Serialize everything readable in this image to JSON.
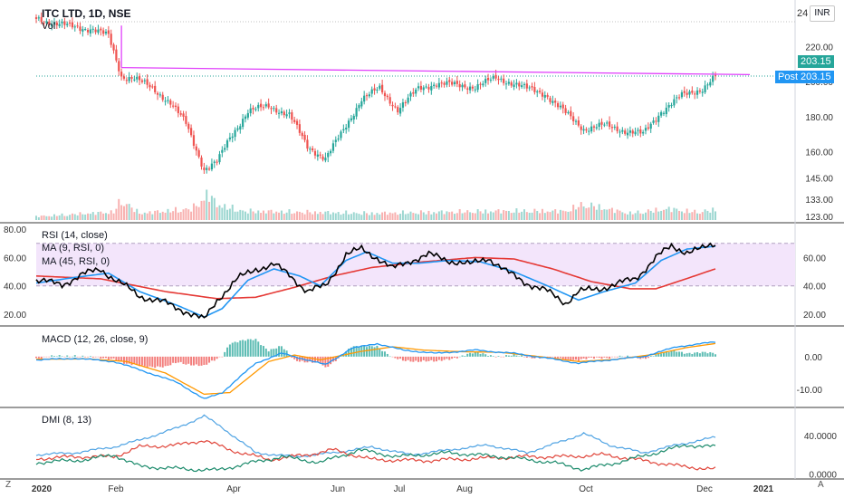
{
  "header": {
    "title": "ITC LTD, 1D, NSE",
    "vol_label": "Vol",
    "currency": "INR",
    "price_partial": "24"
  },
  "badges": {
    "last_price": "203.15",
    "post_label": "Post",
    "post_price": "203.15"
  },
  "corner": {
    "left": "Z",
    "right": "A"
  },
  "colors": {
    "up": "#26a69a",
    "down": "#ef5350",
    "rsi": "#000000",
    "ma9": "#2196f3",
    "ma45": "#e53935",
    "macd": "#2196f3",
    "signal": "#ff9800",
    "dmi_adx": "#4fa3e3",
    "dmi_pos": "#1b8a6b",
    "dmi_neg": "#e0453a",
    "resistance": "#e040fb",
    "rsi_band": "#f3e5fb"
  },
  "chart_data": [
    {
      "type": "candlestick",
      "title": "ITC LTD, 1D, NSE",
      "ylim": [
        121,
        244
      ],
      "yticks": [
        "220.00",
        "200.00",
        "180.00",
        "160.00",
        "145.00",
        "133.00",
        "123.00"
      ],
      "ytick_values": [
        220,
        200,
        180,
        160,
        145,
        133,
        123
      ],
      "x_ticks": [
        "2020",
        "Feb",
        "Apr",
        "Jun",
        "Jul",
        "Aug",
        "Oct",
        "Dec",
        "2021"
      ],
      "resistance_line": [
        208,
        204
      ],
      "last_price": 203.15,
      "close_anchors": [
        [
          0,
          236
        ],
        [
          8,
          233
        ],
        [
          15,
          231
        ],
        [
          22,
          230
        ],
        [
          28,
          226
        ],
        [
          33,
          203
        ],
        [
          38,
          202
        ],
        [
          45,
          196
        ],
        [
          52,
          188
        ],
        [
          58,
          176
        ],
        [
          65,
          150
        ],
        [
          70,
          154
        ],
        [
          75,
          168
        ],
        [
          82,
          183
        ],
        [
          90,
          186
        ],
        [
          98,
          181
        ],
        [
          105,
          163
        ],
        [
          112,
          156
        ],
        [
          118,
          170
        ],
        [
          126,
          190
        ],
        [
          133,
          196
        ],
        [
          140,
          184
        ],
        [
          148,
          196
        ],
        [
          155,
          199
        ],
        [
          163,
          198
        ],
        [
          170,
          197
        ],
        [
          178,
          202
        ],
        [
          185,
          199
        ],
        [
          190,
          196
        ],
        [
          197,
          193
        ],
        [
          205,
          182
        ],
        [
          212,
          173
        ],
        [
          220,
          175
        ],
        [
          228,
          172
        ],
        [
          235,
          170
        ],
        [
          242,
          183
        ],
        [
          250,
          192
        ],
        [
          258,
          196
        ],
        [
          263,
          203
        ]
      ],
      "n_days": 264,
      "volume_range": [
        0,
        100
      ],
      "volume_anchors": [
        [
          0,
          8
        ],
        [
          30,
          18
        ],
        [
          33,
          45
        ],
        [
          40,
          15
        ],
        [
          60,
          25
        ],
        [
          64,
          40
        ],
        [
          66,
          60
        ],
        [
          70,
          35
        ],
        [
          80,
          20
        ],
        [
          100,
          18
        ],
        [
          130,
          15
        ],
        [
          180,
          20
        ],
        [
          205,
          20
        ],
        [
          212,
          35
        ],
        [
          230,
          15
        ],
        [
          245,
          25
        ],
        [
          255,
          18
        ],
        [
          263,
          22
        ]
      ]
    },
    {
      "type": "line",
      "title": "RSI (14, close)",
      "series_labels": [
        "RSI (14, close)",
        "MA (9, RSI, 0)",
        "MA (45, RSI, 0)"
      ],
      "ylim": [
        13,
        82
      ],
      "band": [
        40,
        70
      ],
      "left_ticks": [
        "80.00",
        "60.00",
        "40.00",
        "20.00"
      ],
      "left_tick_values": [
        80,
        60,
        40,
        20
      ],
      "right_ticks": [
        "60.00",
        "40.00",
        "20.00"
      ],
      "right_tick_values": [
        60,
        40,
        20
      ],
      "rsi_anchors": [
        [
          0,
          44
        ],
        [
          10,
          41
        ],
        [
          18,
          48
        ],
        [
          25,
          52
        ],
        [
          30,
          45
        ],
        [
          40,
          33
        ],
        [
          50,
          28
        ],
        [
          58,
          22
        ],
        [
          65,
          16
        ],
        [
          70,
          30
        ],
        [
          78,
          45
        ],
        [
          85,
          52
        ],
        [
          92,
          55
        ],
        [
          98,
          48
        ],
        [
          105,
          36
        ],
        [
          112,
          40
        ],
        [
          120,
          62
        ],
        [
          126,
          66
        ],
        [
          132,
          60
        ],
        [
          138,
          52
        ],
        [
          145,
          58
        ],
        [
          152,
          62
        ],
        [
          160,
          58
        ],
        [
          168,
          55
        ],
        [
          175,
          60
        ],
        [
          182,
          50
        ],
        [
          190,
          42
        ],
        [
          198,
          36
        ],
        [
          205,
          28
        ],
        [
          210,
          36
        ],
        [
          218,
          38
        ],
        [
          226,
          42
        ],
        [
          232,
          45
        ],
        [
          240,
          60
        ],
        [
          246,
          68
        ],
        [
          252,
          64
        ],
        [
          258,
          66
        ],
        [
          263,
          70
        ]
      ],
      "ma9_anchors": [
        [
          0,
          42
        ],
        [
          15,
          46
        ],
        [
          28,
          49
        ],
        [
          40,
          36
        ],
        [
          55,
          26
        ],
        [
          65,
          18
        ],
        [
          72,
          24
        ],
        [
          82,
          44
        ],
        [
          92,
          52
        ],
        [
          102,
          47
        ],
        [
          110,
          40
        ],
        [
          120,
          58
        ],
        [
          128,
          64
        ],
        [
          138,
          56
        ],
        [
          148,
          56
        ],
        [
          160,
          58
        ],
        [
          172,
          57
        ],
        [
          185,
          50
        ],
        [
          198,
          40
        ],
        [
          210,
          30
        ],
        [
          220,
          36
        ],
        [
          232,
          42
        ],
        [
          242,
          58
        ],
        [
          252,
          66
        ],
        [
          263,
          68
        ]
      ],
      "ma45_anchors": [
        [
          0,
          47
        ],
        [
          25,
          45
        ],
        [
          50,
          36
        ],
        [
          70,
          31
        ],
        [
          85,
          32
        ],
        [
          100,
          39
        ],
        [
          115,
          47
        ],
        [
          130,
          53
        ],
        [
          150,
          57
        ],
        [
          170,
          60
        ],
        [
          185,
          59
        ],
        [
          200,
          52
        ],
        [
          215,
          43
        ],
        [
          230,
          38
        ],
        [
          240,
          38
        ],
        [
          250,
          44
        ],
        [
          263,
          52
        ]
      ]
    },
    {
      "type": "line",
      "title": "MACD (12, 26, close, 9)",
      "ylim": [
        -15,
        8
      ],
      "right_ticks": [
        "0.00",
        "-10.00"
      ],
      "right_tick_values": [
        0,
        -10
      ],
      "macd_anchors": [
        [
          0,
          -1
        ],
        [
          15,
          -0.5
        ],
        [
          30,
          -1.5
        ],
        [
          40,
          -4
        ],
        [
          55,
          -8
        ],
        [
          65,
          -13
        ],
        [
          72,
          -11
        ],
        [
          85,
          -2
        ],
        [
          95,
          1
        ],
        [
          105,
          -1
        ],
        [
          112,
          -2.5
        ],
        [
          122,
          2.5
        ],
        [
          132,
          4
        ],
        [
          142,
          2
        ],
        [
          155,
          1
        ],
        [
          170,
          2
        ],
        [
          185,
          1
        ],
        [
          198,
          -0.5
        ],
        [
          210,
          -2
        ],
        [
          222,
          -1
        ],
        [
          235,
          0
        ],
        [
          248,
          3
        ],
        [
          263,
          4.5
        ]
      ],
      "signal_anchors": [
        [
          0,
          -0.8
        ],
        [
          20,
          -0.7
        ],
        [
          35,
          -1.5
        ],
        [
          50,
          -5
        ],
        [
          65,
          -11.5
        ],
        [
          75,
          -11
        ],
        [
          90,
          -1.5
        ],
        [
          100,
          0.5
        ],
        [
          110,
          -1
        ],
        [
          125,
          1.5
        ],
        [
          138,
          3
        ],
        [
          150,
          2
        ],
        [
          165,
          1.5
        ],
        [
          180,
          1.3
        ],
        [
          195,
          0
        ],
        [
          210,
          -1.5
        ],
        [
          225,
          -0.8
        ],
        [
          240,
          0.8
        ],
        [
          252,
          2.8
        ],
        [
          263,
          4
        ]
      ],
      "hist_range": [
        -3,
        3
      ]
    },
    {
      "type": "line",
      "title": "DMI (8, 13)",
      "ylim": [
        -4,
        64
      ],
      "right_ticks": [
        "40.0000",
        "0.0000"
      ],
      "right_tick_values": [
        40,
        0
      ],
      "adx_anchors": [
        [
          0,
          20
        ],
        [
          15,
          22
        ],
        [
          30,
          28
        ],
        [
          40,
          35
        ],
        [
          55,
          48
        ],
        [
          65,
          60
        ],
        [
          72,
          48
        ],
        [
          85,
          22
        ],
        [
          100,
          18
        ],
        [
          115,
          22
        ],
        [
          130,
          28
        ],
        [
          145,
          20
        ],
        [
          160,
          25
        ],
        [
          175,
          30
        ],
        [
          190,
          22
        ],
        [
          205,
          35
        ],
        [
          212,
          42
        ],
        [
          222,
          30
        ],
        [
          235,
          22
        ],
        [
          248,
          30
        ],
        [
          263,
          38
        ]
      ],
      "pos_anchors": [
        [
          0,
          12
        ],
        [
          20,
          15
        ],
        [
          30,
          20
        ],
        [
          40,
          8
        ],
        [
          60,
          5
        ],
        [
          70,
          4
        ],
        [
          80,
          10
        ],
        [
          95,
          18
        ],
        [
          110,
          12
        ],
        [
          125,
          25
        ],
        [
          140,
          18
        ],
        [
          160,
          22
        ],
        [
          180,
          18
        ],
        [
          200,
          12
        ],
        [
          212,
          5
        ],
        [
          225,
          12
        ],
        [
          240,
          22
        ],
        [
          252,
          30
        ],
        [
          263,
          28
        ]
      ],
      "neg_anchors": [
        [
          0,
          16
        ],
        [
          15,
          18
        ],
        [
          30,
          18
        ],
        [
          40,
          28
        ],
        [
          55,
          30
        ],
        [
          65,
          35
        ],
        [
          75,
          25
        ],
        [
          90,
          15
        ],
        [
          105,
          20
        ],
        [
          115,
          25
        ],
        [
          130,
          15
        ],
        [
          150,
          14
        ],
        [
          170,
          16
        ],
        [
          190,
          18
        ],
        [
          205,
          18
        ],
        [
          220,
          20
        ],
        [
          235,
          14
        ],
        [
          250,
          8
        ],
        [
          263,
          5
        ]
      ]
    }
  ]
}
